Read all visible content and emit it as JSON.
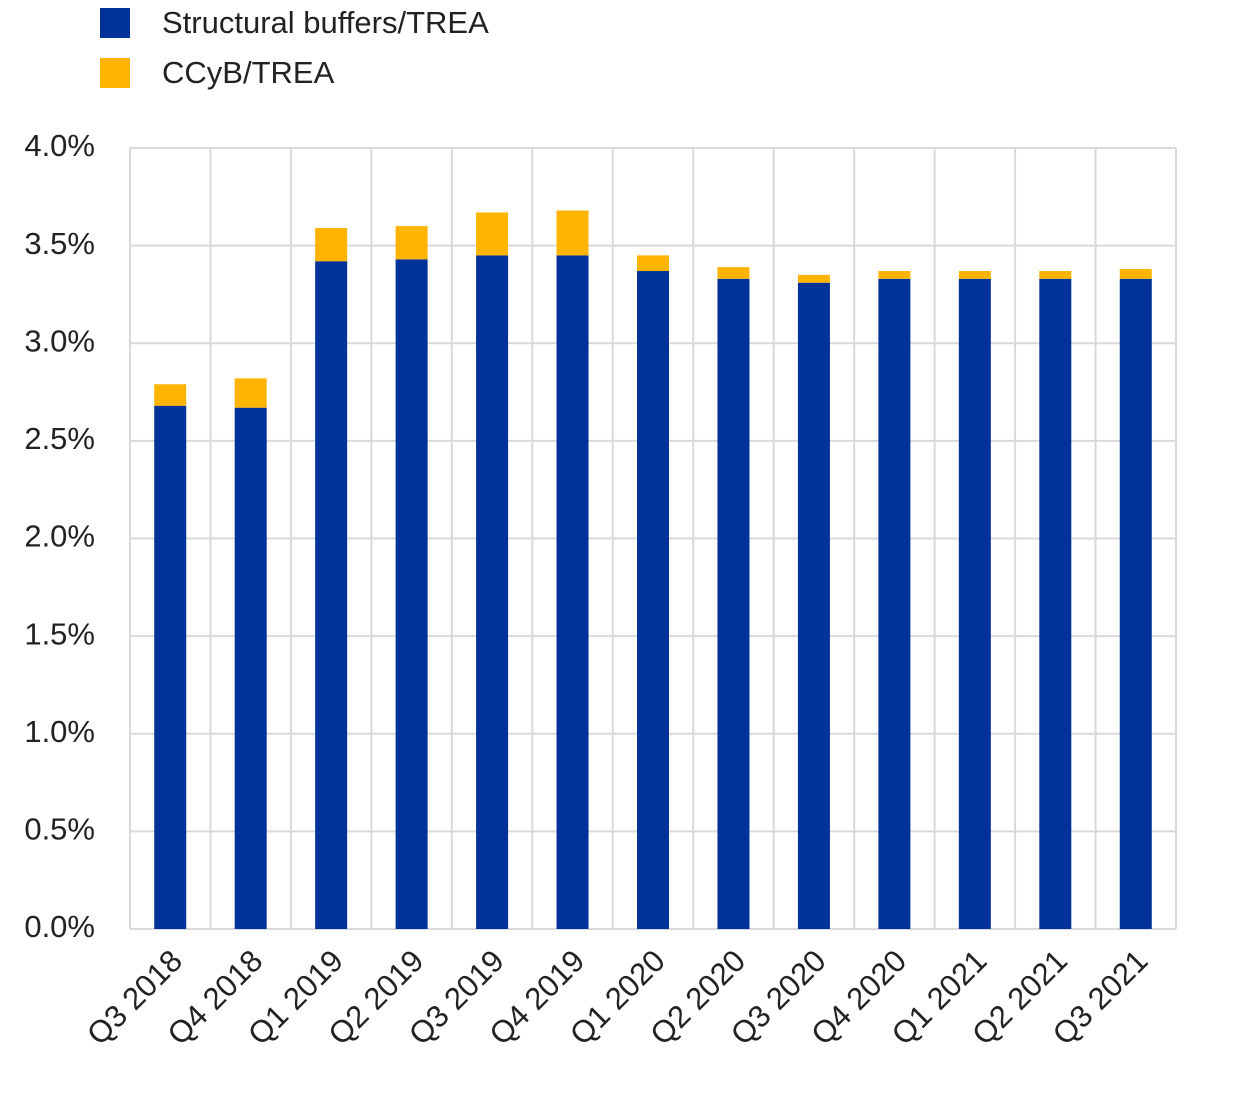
{
  "chart_data": {
    "type": "stacked_bar",
    "categories": [
      "Q3 2018",
      "Q4 2018",
      "Q1 2019",
      "Q2 2019",
      "Q3 2019",
      "Q4 2019",
      "Q1 2020",
      "Q2 2020",
      "Q3 2020",
      "Q4 2020",
      "Q1 2021",
      "Q2 2021",
      "Q3 2021"
    ],
    "series": [
      {
        "name": "Structural buffers/TREA",
        "color": "#003299",
        "values": [
          2.68,
          2.67,
          3.42,
          3.43,
          3.45,
          3.45,
          3.37,
          3.33,
          3.31,
          3.33,
          3.33,
          3.33,
          3.33
        ]
      },
      {
        "name": "CCyB/TREA",
        "color": "#ffb400",
        "values": [
          0.11,
          0.15,
          0.17,
          0.17,
          0.22,
          0.23,
          0.08,
          0.06,
          0.04,
          0.04,
          0.04,
          0.04,
          0.05
        ]
      }
    ],
    "ylim": [
      0,
      4
    ],
    "yticks": [
      {
        "value": 0,
        "label": "0.0%"
      },
      {
        "value": 0.5,
        "label": "0.5%"
      },
      {
        "value": 1,
        "label": "1.0%"
      },
      {
        "value": 1.5,
        "label": "1.5%"
      },
      {
        "value": 2,
        "label": "2.0%"
      },
      {
        "value": 2.5,
        "label": "2.5%"
      },
      {
        "value": 3,
        "label": "3.0%"
      },
      {
        "value": 3.5,
        "label": "3.5%"
      },
      {
        "value": 4,
        "label": "4.0%"
      }
    ],
    "grid": true
  }
}
